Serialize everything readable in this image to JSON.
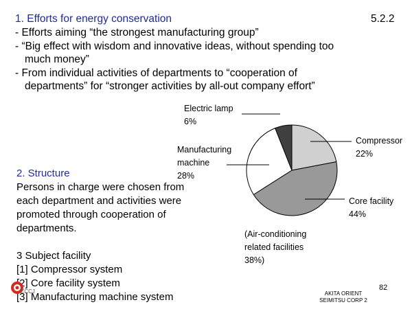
{
  "slide": {
    "section_number": "5.2.2",
    "heading1": "1. Efforts for energy conservation",
    "bullets": [
      "- Efforts aiming “the strongest manufacturing group”",
      "- “Big effect with wisdom and innovative ideas, without spending too",
      "much money”",
      "- From individual activities of departments to “cooperation of",
      "departments” for “stronger activities by all-out company effort”"
    ],
    "heading2": "2. Structure",
    "structure_text": [
      "Persons in charge were chosen from",
      "each department and activities were",
      "promoted through cooperation of",
      "departments."
    ],
    "heading3": "3  Subject facility",
    "facilities": [
      "[1] Compressor system",
      "[2] Core facility system",
      "[3] Manufacturing machine system"
    ],
    "footer": {
      "logo_text": "ECCJ",
      "company_line1": "AKITA ORIENT",
      "company_line2": "SEIMITSU CORP 2",
      "page_number": "82"
    }
  },
  "chart_data": {
    "type": "pie",
    "title": "",
    "slices": [
      {
        "label": "Compressor",
        "value": 22,
        "value_label": "22%",
        "color": "#d0d0d0"
      },
      {
        "label": "Core facility",
        "value": 44,
        "value_label": "44%",
        "color": "#999999"
      },
      {
        "label": "Manufacturing machine",
        "value": 28,
        "value_label": "28%",
        "color": "#ffffff"
      },
      {
        "label": "Electric lamp",
        "value": 6,
        "value_label": "6%",
        "color": "#404040"
      }
    ],
    "annotation": [
      "(Air-conditioning",
      "related facilities",
      "38%)"
    ],
    "callout_texts": {
      "electric_lamp": [
        "Electric lamp",
        "6%"
      ],
      "manufacturing": [
        "Manufacturing",
        "machine",
        "28%"
      ],
      "compressor": [
        "Compressor",
        "22%"
      ],
      "core": [
        "Core facility",
        "44%"
      ]
    }
  }
}
